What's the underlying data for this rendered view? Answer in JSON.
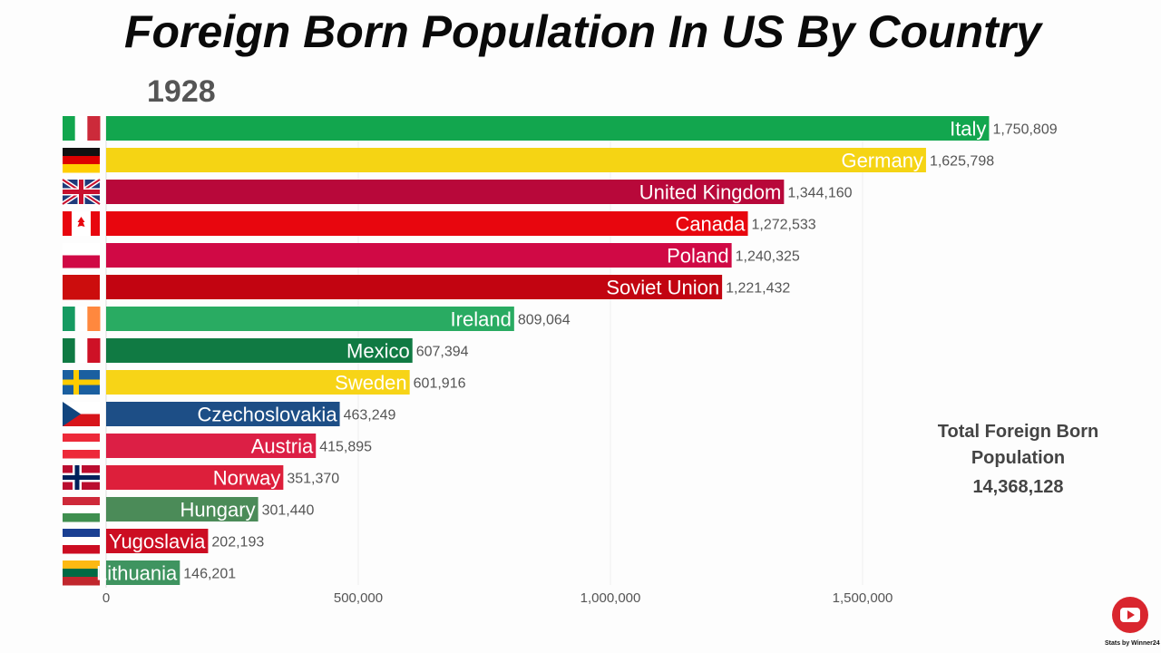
{
  "title": "Foreign Born Population In US By Country",
  "year": "1928",
  "total": {
    "label_line1": "Total Foreign Born",
    "label_line2": "Population",
    "value": "14,368,128"
  },
  "watermark": "Stats by Winner24",
  "chart_data": {
    "type": "bar",
    "orientation": "horizontal",
    "title": "Foreign Born Population In US By Country",
    "xlim": [
      0,
      1900000
    ],
    "x_ticks": [
      0,
      500000,
      1000000,
      1500000
    ],
    "x_tick_labels": [
      "0",
      "500,000",
      "1,000,000",
      "1,500,000"
    ],
    "grid": true,
    "categories": [
      "Italy",
      "Germany",
      "United Kingdom",
      "Canada",
      "Poland",
      "Soviet Union",
      "Ireland",
      "Mexico",
      "Sweden",
      "Czechoslovakia",
      "Austria",
      "Norway",
      "Hungary",
      "Yugoslavia",
      "Lithuania"
    ],
    "values": [
      1750809,
      1625798,
      1344160,
      1272533,
      1240325,
      1221432,
      809064,
      607394,
      601916,
      463249,
      415895,
      351370,
      301440,
      202193,
      146201
    ],
    "value_labels": [
      "1,750,809",
      "1,625,798",
      "1,344,160",
      "1,272,533",
      "1,240,325",
      "1,221,432",
      "809,064",
      "607,394",
      "601,916",
      "463,249",
      "415,895",
      "351,370",
      "301,440",
      "202,193",
      "146,201"
    ],
    "colors": [
      "#12a64e",
      "#f5d414",
      "#b8083a",
      "#e8060e",
      "#d00945",
      "#c20411",
      "#29ab62",
      "#107a43",
      "#f7d417",
      "#1d4e86",
      "#dc1f45",
      "#dd1f3b",
      "#4b8b58",
      "#cc0d22",
      "#3f9460"
    ],
    "flags": [
      {
        "dir": "v",
        "colors": [
          "#12a64e",
          "#ffffff",
          "#cc2a3a"
        ]
      },
      {
        "dir": "h",
        "colors": [
          "#111111",
          "#dd0000",
          "#ffce00"
        ]
      },
      {
        "dir": "uk",
        "colors": [
          "#1f3a7a",
          "#ffffff",
          "#c8102e"
        ]
      },
      {
        "dir": "ca",
        "colors": [
          "#e8060e",
          "#ffffff",
          "#e8060e"
        ]
      },
      {
        "dir": "h",
        "colors": [
          "#ffffff",
          "#d00945"
        ]
      },
      {
        "dir": "h",
        "colors": [
          "#cc0d0d"
        ]
      },
      {
        "dir": "v",
        "colors": [
          "#169b62",
          "#ffffff",
          "#ff883e"
        ]
      },
      {
        "dir": "v",
        "colors": [
          "#0f7a43",
          "#ffffff",
          "#ce1126"
        ]
      },
      {
        "dir": "se",
        "colors": [
          "#1a5fa0",
          "#fecc00"
        ]
      },
      {
        "dir": "cz",
        "colors": [
          "#ffffff",
          "#d7141a",
          "#11457e"
        ]
      },
      {
        "dir": "h",
        "colors": [
          "#ed2939",
          "#ffffff",
          "#ed2939"
        ]
      },
      {
        "dir": "no",
        "colors": [
          "#ba0c2f",
          "#ffffff",
          "#00205b"
        ]
      },
      {
        "dir": "h",
        "colors": [
          "#ce2939",
          "#ffffff",
          "#3f8f4f"
        ]
      },
      {
        "dir": "h",
        "colors": [
          "#1a3f92",
          "#ffffff",
          "#cc0d22"
        ]
      },
      {
        "dir": "h",
        "colors": [
          "#fdb913",
          "#006a44",
          "#c1272d"
        ]
      }
    ]
  }
}
